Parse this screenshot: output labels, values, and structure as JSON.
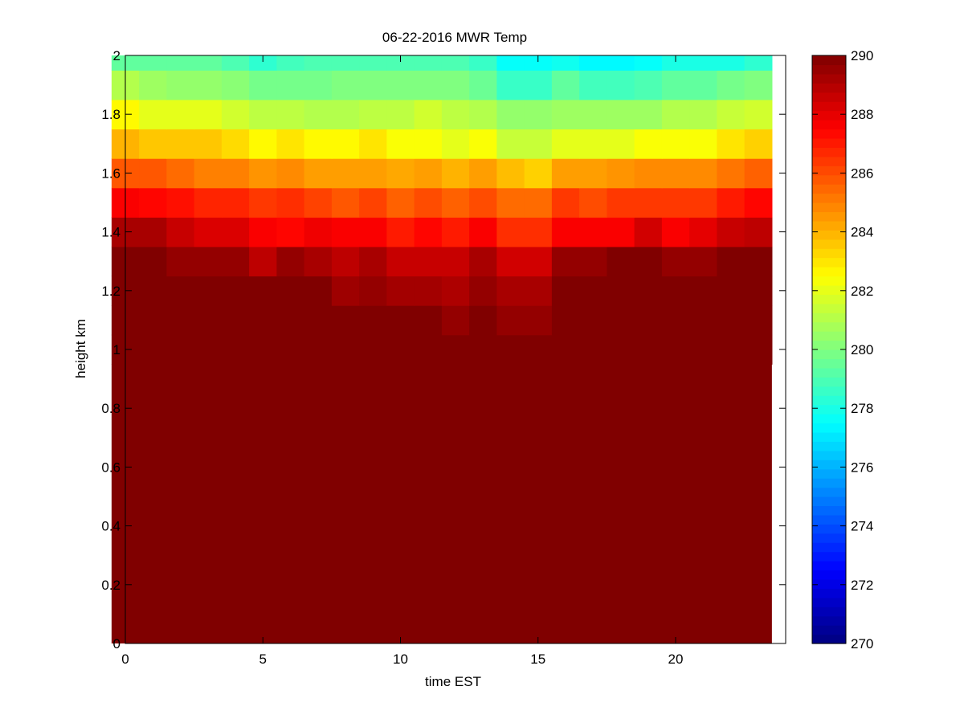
{
  "chart_data": {
    "type": "heatmap",
    "title": "06-22-2016 MWR Temp",
    "xlabel": "time EST",
    "ylabel": "height km",
    "xlim": [
      0,
      24
    ],
    "ylim": [
      0,
      2
    ],
    "x_ticks": [
      0,
      5,
      10,
      15,
      20
    ],
    "y_ticks": [
      0,
      0.2,
      0.4,
      0.6,
      0.8,
      1,
      1.2,
      1.4,
      1.6,
      1.8,
      2
    ],
    "x_tick_labels": [
      "0",
      "5",
      "10",
      "15",
      "20"
    ],
    "y_tick_labels": [
      "0",
      "0.2",
      "0.4",
      "0.6",
      "0.8",
      "1",
      "1.2",
      "1.4",
      "1.6",
      "1.8",
      "2"
    ],
    "colorbar": {
      "colormap": "jet",
      "range": [
        270,
        290
      ],
      "ticks": [
        270,
        272,
        274,
        276,
        278,
        280,
        282,
        284,
        286,
        288,
        290
      ],
      "tick_labels": [
        "270",
        "272",
        "274",
        "276",
        "278",
        "280",
        "282",
        "284",
        "286",
        "288",
        "290"
      ]
    },
    "x_centers": [
      0,
      1,
      2,
      3,
      4,
      5,
      6,
      7,
      8,
      9,
      10,
      11,
      12,
      13,
      14,
      15,
      16,
      17,
      18,
      19,
      20,
      21,
      22,
      23
    ],
    "y_centers": [
      1.0,
      1.1,
      1.2,
      1.3,
      1.4,
      1.5,
      1.6,
      1.7,
      1.8,
      1.9,
      2.0
    ],
    "below_lowest_row_value": 290,
    "z": [
      [
        290,
        290,
        290,
        290,
        290,
        290,
        290,
        290,
        290,
        290,
        290,
        290,
        290,
        290,
        290,
        290,
        290,
        290,
        290,
        290,
        290,
        290,
        290,
        290
      ],
      [
        290,
        290,
        290,
        290,
        290,
        290,
        290,
        290,
        290,
        290,
        290,
        290,
        289.6,
        290,
        289.6,
        289.6,
        290,
        290,
        290,
        290,
        290,
        290,
        290,
        290
      ],
      [
        290,
        290,
        290,
        290,
        290,
        290,
        290,
        290,
        289.4,
        289.6,
        289.3,
        289.3,
        289.1,
        289.6,
        289.2,
        289.2,
        290,
        290,
        290,
        290,
        290,
        290,
        290,
        290
      ],
      [
        290,
        290,
        289.6,
        289.6,
        289.6,
        288.8,
        289.6,
        289.2,
        288.8,
        289.2,
        288.6,
        288.6,
        288.6,
        289.2,
        288.4,
        288.4,
        289.6,
        289.6,
        290,
        290,
        289.6,
        289.6,
        290,
        290
      ],
      [
        289.2,
        289.2,
        288.6,
        288.2,
        288.2,
        287.6,
        287.4,
        287.8,
        287.6,
        287.6,
        287.0,
        287.4,
        287.0,
        287.6,
        286.6,
        286.6,
        287.6,
        287.6,
        287.6,
        288.4,
        287.6,
        288.0,
        288.6,
        288.8
      ],
      [
        287.6,
        287.4,
        287.2,
        286.8,
        286.8,
        286.4,
        286.6,
        286.2,
        285.8,
        286.2,
        285.6,
        286.0,
        285.6,
        286.0,
        285.4,
        285.4,
        286.4,
        286.0,
        286.4,
        286.4,
        286.4,
        286.4,
        287.0,
        287.4
      ],
      [
        285.8,
        285.8,
        285.4,
        285.0,
        285.0,
        284.6,
        284.8,
        284.4,
        284.4,
        284.4,
        284.2,
        284.4,
        284.0,
        284.4,
        283.8,
        283.4,
        284.4,
        284.4,
        284.6,
        284.8,
        284.8,
        284.8,
        285.2,
        285.6
      ],
      [
        284.0,
        283.6,
        283.6,
        283.6,
        283.2,
        282.6,
        283.0,
        282.6,
        282.6,
        283.0,
        282.4,
        282.4,
        282.0,
        282.4,
        281.4,
        281.4,
        282.0,
        282.0,
        282.0,
        282.4,
        282.4,
        282.4,
        283.0,
        283.4
      ],
      [
        282.6,
        282.0,
        282.0,
        282.0,
        281.6,
        281.2,
        281.2,
        281.0,
        281.0,
        281.2,
        281.2,
        281.6,
        281.2,
        281.0,
        280.4,
        280.4,
        280.6,
        280.6,
        280.6,
        280.6,
        281.0,
        281.0,
        281.4,
        281.6
      ],
      [
        281.0,
        280.6,
        280.4,
        280.4,
        280.2,
        279.8,
        279.8,
        279.8,
        280.0,
        280.0,
        280.0,
        280.0,
        280.0,
        279.6,
        278.6,
        278.6,
        279.4,
        278.8,
        278.8,
        279.0,
        279.4,
        279.4,
        279.8,
        280.0
      ],
      [
        279.4,
        279.4,
        279.4,
        279.4,
        279.0,
        278.4,
        278.8,
        279.0,
        279.0,
        279.0,
        279.0,
        279.0,
        279.0,
        278.6,
        277.6,
        277.6,
        277.8,
        277.4,
        277.4,
        277.6,
        278.0,
        278.0,
        278.0,
        278.4
      ]
    ]
  }
}
